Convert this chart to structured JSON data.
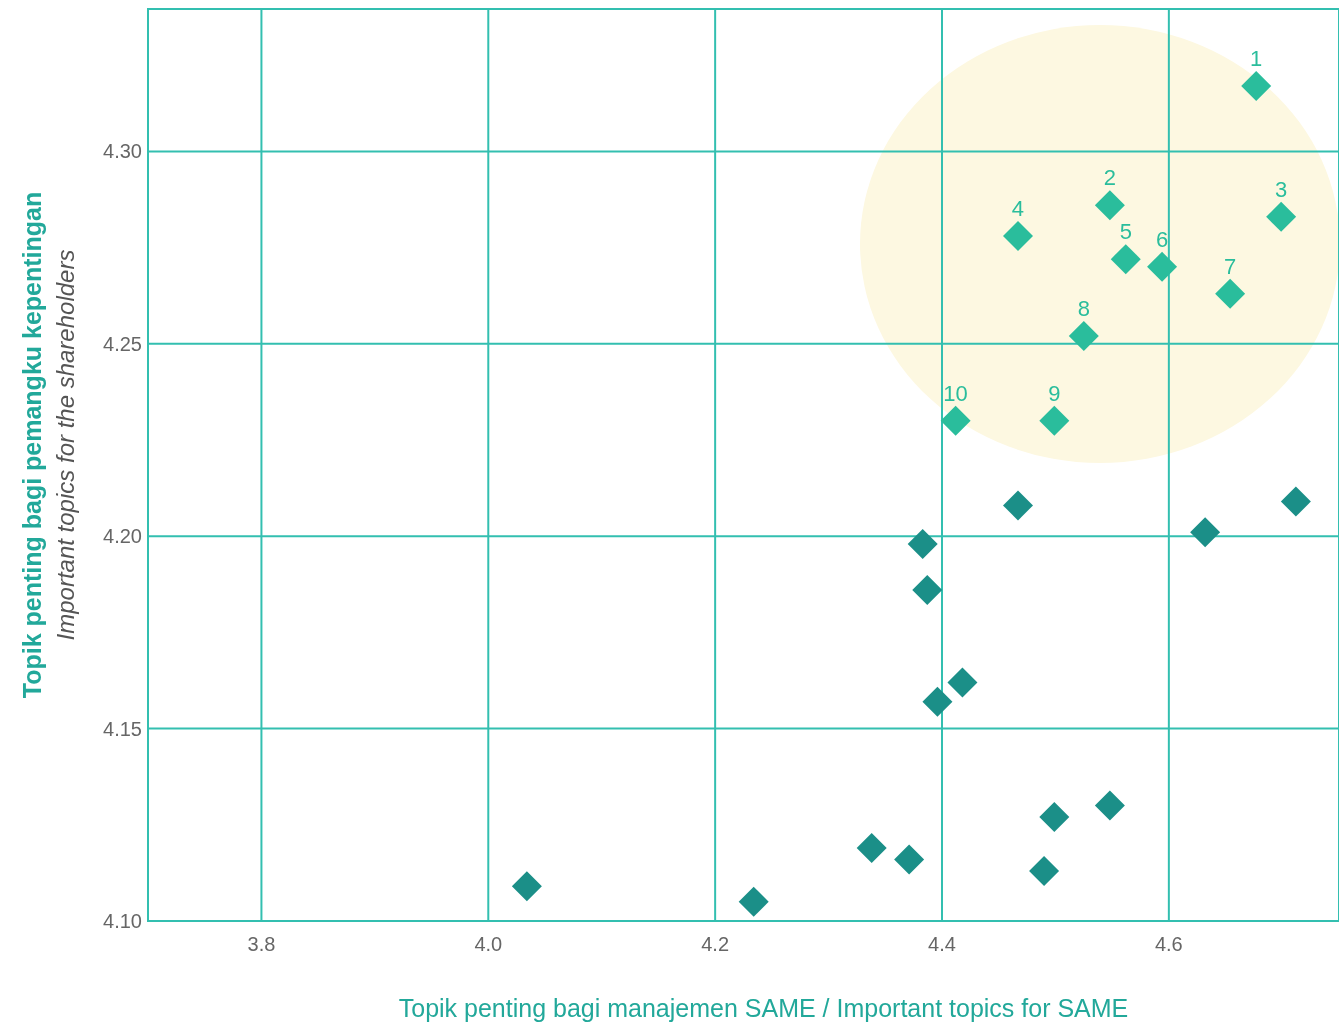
{
  "chart_data": {
    "type": "scatter",
    "xlabel": "Topik penting bagi manajemen SAME / Important topics for SAME",
    "ylabel": "Topik penting bagi pemangku kepentingan\nImportant topics for the shareholders",
    "xlim": [
      3.7,
      4.75
    ],
    "xticks": [
      {
        "value": 3.8,
        "label": "3.8"
      },
      {
        "value": 4.0,
        "label": "4.0"
      },
      {
        "value": 4.2,
        "label": "4.2"
      },
      {
        "value": 4.4,
        "label": "4.4"
      },
      {
        "value": 4.6,
        "label": "4.6"
      }
    ],
    "ylim": [
      4.1,
      4.337
    ],
    "yticks": [
      {
        "value": 4.1,
        "label": "4.10"
      },
      {
        "value": 4.15,
        "label": "4.15"
      },
      {
        "value": 4.2,
        "label": "4.20"
      },
      {
        "value": 4.25,
        "label": "4.25"
      },
      {
        "value": 4.3,
        "label": "4.30"
      }
    ],
    "grid": true,
    "marker": "diamond",
    "annotations": [
      {
        "text": "1",
        "x": 4.677,
        "y": 4.317
      },
      {
        "text": "2",
        "x": 4.548,
        "y": 4.286
      },
      {
        "text": "3",
        "x": 4.699,
        "y": 4.283
      },
      {
        "text": "4",
        "x": 4.467,
        "y": 4.278
      },
      {
        "text": "5",
        "x": 4.562,
        "y": 4.272
      },
      {
        "text": "6",
        "x": 4.594,
        "y": 4.27
      },
      {
        "text": "7",
        "x": 4.654,
        "y": 4.263
      },
      {
        "text": "8",
        "x": 4.525,
        "y": 4.252
      },
      {
        "text": "9",
        "x": 4.499,
        "y": 4.23
      },
      {
        "text": "10",
        "x": 4.412,
        "y": 4.23
      }
    ],
    "series": [
      {
        "color": "#2abd9c",
        "x": [
          4.677,
          4.548,
          4.699,
          4.467,
          4.562,
          4.594,
          4.654,
          4.525,
          4.499,
          4.412
        ],
        "values": [
          4.317,
          4.286,
          4.283,
          4.278,
          4.272,
          4.27,
          4.263,
          4.252,
          4.23,
          4.23
        ]
      },
      {
        "color": "#1b8f88",
        "x": [
          4.467,
          4.712,
          4.632,
          4.383,
          4.387,
          4.418,
          4.396,
          4.548,
          4.499,
          4.338,
          4.371,
          4.49,
          4.034,
          4.234
        ],
        "values": [
          4.208,
          4.209,
          4.201,
          4.198,
          4.186,
          4.162,
          4.157,
          4.13,
          4.127,
          4.119,
          4.116,
          4.113,
          4.109,
          4.105
        ]
      }
    ]
  }
}
